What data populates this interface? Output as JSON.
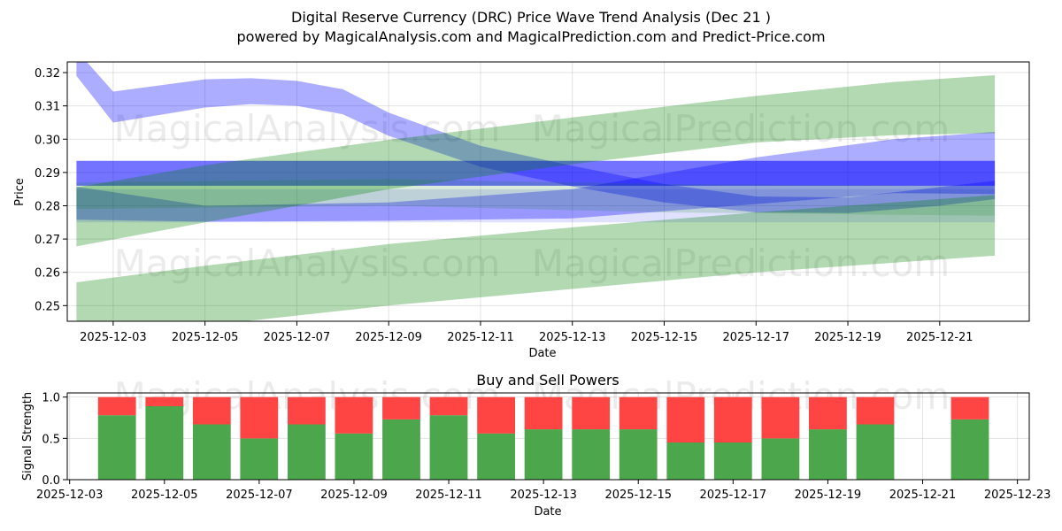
{
  "chart_data": [
    {
      "type": "area",
      "title": "Digital Reserve Currency (DRC) Price Wave Trend Analysis (Dec 21 )",
      "subtitle": "powered by MagicalAnalysis.com and MagicalPrediction.com and Predict-Price.com",
      "xlabel": "Date",
      "ylabel": "Price",
      "xlim": [
        "2025-12-02",
        "2025-12-22.95"
      ],
      "ylim": [
        0.2453,
        0.3232
      ],
      "x_ticks": [
        "2025-12-03",
        "2025-12-05",
        "2025-12-07",
        "2025-12-09",
        "2025-12-11",
        "2025-12-13",
        "2025-12-15",
        "2025-12-17",
        "2025-12-19",
        "2025-12-21"
      ],
      "y_ticks": [
        0.25,
        0.26,
        0.27,
        0.28,
        0.29,
        0.3,
        0.31,
        0.32
      ],
      "y_tick_labels": [
        "0.25",
        "0.26",
        "0.27",
        "0.28",
        "0.29",
        "0.30",
        "0.31",
        "0.32"
      ],
      "grid": true,
      "watermarks": [
        "MagicalAnalysis.com",
        "MagicalPrediction.com"
      ],
      "series": [
        {
          "name": "blue-wave-upper",
          "color": "#0000ff",
          "opacity": 0.32,
          "upper": [
            [
              2.2,
              0.3267
            ],
            [
              3.0,
              0.3143
            ],
            [
              5.0,
              0.318
            ],
            [
              6.0,
              0.3183
            ],
            [
              7.0,
              0.3175
            ],
            [
              8.0,
              0.315
            ],
            [
              9.0,
              0.308
            ],
            [
              11.0,
              0.298
            ],
            [
              13.0,
              0.292
            ],
            [
              15.0,
              0.2865
            ],
            [
              17.0,
              0.2828
            ],
            [
              19.0,
              0.2825
            ],
            [
              21.0,
              0.2856
            ],
            [
              22.2,
              0.2875
            ]
          ],
          "lower": [
            [
              2.2,
              0.319
            ],
            [
              3.0,
              0.305
            ],
            [
              5.0,
              0.3095
            ],
            [
              6.0,
              0.3105
            ],
            [
              7.0,
              0.31
            ],
            [
              8.0,
              0.3075
            ],
            [
              9.0,
              0.301
            ],
            [
              11.0,
              0.2917
            ],
            [
              13.0,
              0.2858
            ],
            [
              15.0,
              0.281
            ],
            [
              17.0,
              0.278
            ],
            [
              19.0,
              0.2778
            ],
            [
              21.0,
              0.28
            ],
            [
              22.2,
              0.282
            ]
          ]
        },
        {
          "name": "blue-wave-rising",
          "color": "#0000ff",
          "opacity": 0.32,
          "upper": [
            [
              2.2,
              0.2857
            ],
            [
              5.0,
              0.28
            ],
            [
              9.0,
              0.281
            ],
            [
              13.0,
              0.285
            ],
            [
              17.0,
              0.2945
            ],
            [
              20.0,
              0.3
            ],
            [
              22.2,
              0.3022
            ]
          ],
          "lower": [
            [
              2.2,
              0.2758
            ],
            [
              5.0,
              0.2752
            ],
            [
              9.0,
              0.2755
            ],
            [
              13.0,
              0.2762
            ],
            [
              17.0,
              0.2805
            ],
            [
              20.0,
              0.2838
            ],
            [
              22.2,
              0.2835
            ]
          ]
        },
        {
          "name": "blue-band-flat",
          "color": "#0000ff",
          "opacity": 0.55,
          "upper": [
            [
              2.2,
              0.2935
            ],
            [
              22.2,
              0.2935
            ]
          ],
          "lower": [
            [
              2.2,
              0.286
            ],
            [
              22.2,
              0.286
            ]
          ]
        },
        {
          "name": "blue-band-pale",
          "color": "#0000ff",
          "opacity": 0.12,
          "upper": [
            [
              2.2,
              0.285
            ],
            [
              22.2,
              0.285
            ]
          ],
          "lower": [
            [
              2.2,
              0.275
            ],
            [
              22.2,
              0.275
            ]
          ]
        },
        {
          "name": "green-wave-upper",
          "color": "#008000",
          "opacity": 0.3,
          "upper": [
            [
              2.2,
              0.2855
            ],
            [
              5.0,
              0.2922
            ],
            [
              9.0,
              0.2998
            ],
            [
              13.0,
              0.3065
            ],
            [
              17.0,
              0.313
            ],
            [
              20.0,
              0.3172
            ],
            [
              22.2,
              0.3192
            ]
          ],
          "lower": [
            [
              2.2,
              0.2678
            ],
            [
              5.0,
              0.275
            ],
            [
              9.0,
              0.285
            ],
            [
              13.0,
              0.2925
            ],
            [
              17.0,
              0.299
            ],
            [
              20.0,
              0.3012
            ],
            [
              22.2,
              0.3018
            ]
          ]
        },
        {
          "name": "green-wave-lower",
          "color": "#008000",
          "opacity": 0.3,
          "upper": [
            [
              2.2,
              0.257
            ],
            [
              5.0,
              0.262
            ],
            [
              9.0,
              0.2685
            ],
            [
              13.0,
              0.2735
            ],
            [
              17.0,
              0.278
            ],
            [
              22.2,
              0.2832
            ]
          ],
          "lower": [
            [
              2.2,
              0.241
            ],
            [
              5.0,
              0.244
            ],
            [
              9.0,
              0.25
            ],
            [
              13.0,
              0.255
            ],
            [
              17.0,
              0.26
            ],
            [
              22.2,
              0.265
            ]
          ]
        },
        {
          "name": "green-band-light",
          "color": "#008000",
          "opacity": 0.15,
          "upper": [
            [
              2.2,
              0.287
            ],
            [
              9.0,
              0.288
            ],
            [
              15.0,
              0.2865
            ],
            [
              22.2,
              0.286
            ]
          ],
          "lower": [
            [
              2.2,
              0.279
            ],
            [
              9.0,
              0.28
            ],
            [
              15.0,
              0.278
            ],
            [
              22.2,
              0.277
            ]
          ]
        }
      ]
    },
    {
      "type": "bar",
      "stacked": true,
      "title": "Buy and Sell Powers",
      "xlabel": "Date",
      "ylabel": "Signal Strength",
      "xlim": [
        "2025-12-02.95",
        "2025-12-23.25"
      ],
      "ylim": [
        0,
        1.05
      ],
      "x_ticks": [
        "2025-12-03",
        "2025-12-05",
        "2025-12-07",
        "2025-12-09",
        "2025-12-11",
        "2025-12-13",
        "2025-12-15",
        "2025-12-17",
        "2025-12-19",
        "2025-12-21",
        "2025-12-23"
      ],
      "y_ticks": [
        0.0,
        0.5,
        1.0
      ],
      "y_tick_labels": [
        "0.0",
        "0.5",
        "1.0"
      ],
      "grid": true,
      "categories": [
        "2025-12-04",
        "2025-12-05",
        "2025-12-06",
        "2025-12-07",
        "2025-12-08",
        "2025-12-09",
        "2025-12-10",
        "2025-12-11",
        "2025-12-12",
        "2025-12-13",
        "2025-12-14",
        "2025-12-15",
        "2025-12-16",
        "2025-12-17",
        "2025-12-18",
        "2025-12-19",
        "2025-12-20",
        "2025-12-22"
      ],
      "series": [
        {
          "name": "Buy",
          "color": "#4ca64c",
          "values": [
            0.78,
            0.89,
            0.67,
            0.5,
            0.67,
            0.56,
            0.73,
            0.78,
            0.56,
            0.61,
            0.61,
            0.61,
            0.45,
            0.45,
            0.5,
            0.61,
            0.67,
            0.73
          ]
        },
        {
          "name": "Sell",
          "color": "#ff4444",
          "values": [
            0.22,
            0.11,
            0.33,
            0.5,
            0.33,
            0.44,
            0.27,
            0.22,
            0.44,
            0.39,
            0.39,
            0.39,
            0.55,
            0.55,
            0.5,
            0.39,
            0.33,
            0.27
          ]
        }
      ]
    }
  ]
}
